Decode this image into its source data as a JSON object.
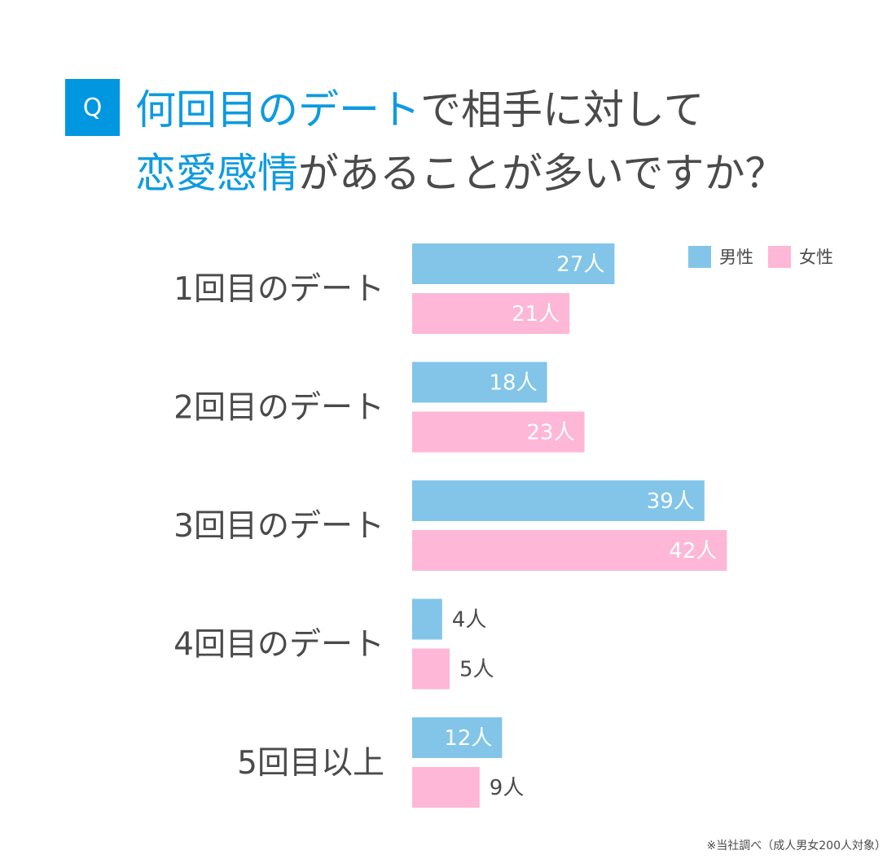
{
  "header": {
    "badge": "Q",
    "title_line1_highlight": "何回目のデート",
    "title_line1_rest": "で相手に対して",
    "title_line2_highlight": "恋愛感情",
    "title_line2_rest": "があることが多いですか？"
  },
  "legend": {
    "male_label": "男性",
    "female_label": "女性"
  },
  "colors": {
    "male": "#82c5e8",
    "female": "#feb7d6",
    "accent": "#0096e0",
    "text": "#4a4a4a"
  },
  "chart_data": {
    "type": "bar",
    "orientation": "horizontal",
    "categories": [
      "1回目のデート",
      "2回目のデート",
      "3回目のデート",
      "4回目のデート",
      "5回目以上"
    ],
    "series": [
      {
        "name": "男性",
        "values": [
          27,
          18,
          39,
          4,
          12
        ],
        "labels": [
          "27人",
          "18人",
          "39人",
          "4人",
          "12人"
        ]
      },
      {
        "name": "女性",
        "values": [
          21,
          23,
          42,
          5,
          9
        ],
        "labels": [
          "21人",
          "23人",
          "42人",
          "5人",
          "9人"
        ]
      }
    ],
    "unit": "人",
    "legend_position": "top-right",
    "grid": false
  },
  "footnote": "※当社調べ（成人男女200人対象）"
}
